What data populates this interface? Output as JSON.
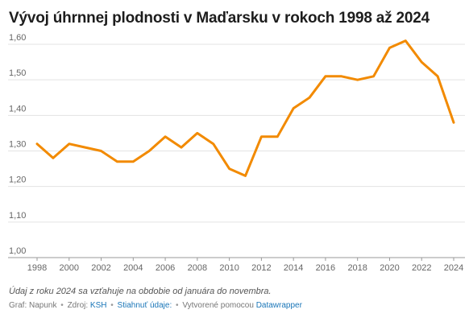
{
  "title": "Vývoj úhrnnej plodnosti v Maďarsku v rokoch 1998 až 2024",
  "note": "Údaj z roku 2024 sa vzťahuje na obdobie od januára do novembra.",
  "footer": {
    "graph_label": "Graf: Napunk",
    "source_label": "Zdroj:",
    "source_link": "KSH",
    "download_link": "Stiahnuť údaje:",
    "created_label": "Vytvorené pomocou",
    "created_link": "Datawrapper"
  },
  "colors": {
    "line": "#f28a00",
    "grid": "#e3e3e3",
    "baseline": "#999999"
  },
  "chart_data": {
    "type": "line",
    "title": "Vývoj úhrnnej plodnosti v Maďarsku v rokoch 1998 až 2024",
    "xlabel": "",
    "ylabel": "",
    "x": [
      1998,
      1999,
      2000,
      2001,
      2002,
      2003,
      2004,
      2005,
      2006,
      2007,
      2008,
      2009,
      2010,
      2011,
      2012,
      2013,
      2014,
      2015,
      2016,
      2017,
      2018,
      2019,
      2020,
      2021,
      2022,
      2023,
      2024
    ],
    "series": [
      {
        "values": [
          1.32,
          1.28,
          1.32,
          1.31,
          1.3,
          1.27,
          1.27,
          1.3,
          1.34,
          1.31,
          1.35,
          1.32,
          1.25,
          1.23,
          1.34,
          1.34,
          1.42,
          1.45,
          1.51,
          1.51,
          1.5,
          1.51,
          1.59,
          1.61,
          1.55,
          1.51,
          1.38
        ]
      }
    ],
    "xlim": [
      1998,
      2024
    ],
    "ylim": [
      1.0,
      1.6
    ],
    "x_ticks": [
      "1998",
      "2000",
      "2002",
      "2004",
      "2006",
      "2008",
      "2010",
      "2012",
      "2014",
      "2016",
      "2018",
      "2020",
      "2022",
      "2024"
    ],
    "y_ticks": [
      "1,00",
      "1,10",
      "1,20",
      "1,30",
      "1,40",
      "1,50",
      "1,60"
    ],
    "grid": true,
    "legend": "none"
  }
}
